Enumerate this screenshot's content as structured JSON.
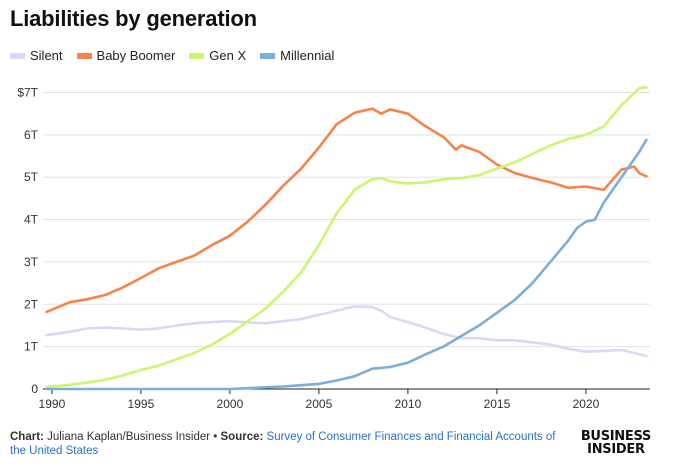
{
  "chart_data": {
    "type": "line",
    "title": "Liabilities by generation",
    "xlabel": "",
    "ylabel": "",
    "xlim": [
      1989.5,
      2023.6
    ],
    "ylim": [
      0,
      7.2
    ],
    "x_ticks": [
      1990,
      1995,
      2000,
      2005,
      2010,
      2015,
      2020
    ],
    "x_tick_labels": [
      "1990",
      "1995",
      "2000",
      "2005",
      "2010",
      "2015",
      "2020"
    ],
    "y_ticks": [
      0,
      1,
      2,
      3,
      4,
      5,
      6,
      7
    ],
    "y_tick_labels": [
      "0",
      "1T",
      "2T",
      "3T",
      "4T",
      "5T",
      "6T",
      "$7T"
    ],
    "grid": "horizontal",
    "legend": "top-left",
    "series": [
      {
        "name": "Silent",
        "color": "#d9d9f5",
        "x": [
          1989.7,
          1991,
          1992,
          1993,
          1994,
          1995,
          1996,
          1997,
          1998,
          1999,
          2000,
          2001,
          2002,
          2003,
          2004,
          2005,
          2006,
          2007,
          2008,
          2008.5,
          2009,
          2010,
          2011,
          2012,
          2013,
          2014,
          2015,
          2016,
          2017,
          2018,
          2019,
          2020,
          2021,
          2022,
          2023,
          2023.4
        ],
        "y": [
          1.27,
          1.35,
          1.43,
          1.45,
          1.43,
          1.4,
          1.43,
          1.5,
          1.55,
          1.58,
          1.6,
          1.57,
          1.55,
          1.6,
          1.65,
          1.75,
          1.85,
          1.95,
          1.93,
          1.85,
          1.7,
          1.58,
          1.45,
          1.3,
          1.2,
          1.2,
          1.15,
          1.15,
          1.1,
          1.05,
          0.95,
          0.88,
          0.9,
          0.92,
          0.82,
          0.78
        ]
      },
      {
        "name": "Baby Boomer",
        "color": "#f5844c",
        "x": [
          1989.7,
          1991,
          1992,
          1993,
          1994,
          1995,
          1996,
          1997,
          1998,
          1999,
          2000,
          2001,
          2002,
          2003,
          2004,
          2005,
          2006,
          2007,
          2008,
          2008.5,
          2009,
          2010,
          2011,
          2012,
          2012.7,
          2013,
          2014,
          2015,
          2016,
          2017,
          2018,
          2019,
          2020,
          2021,
          2022,
          2022.7,
          2023,
          2023.4
        ],
        "y": [
          1.82,
          2.05,
          2.12,
          2.22,
          2.4,
          2.62,
          2.85,
          3.0,
          3.15,
          3.4,
          3.62,
          3.95,
          4.35,
          4.8,
          5.2,
          5.7,
          6.25,
          6.52,
          6.62,
          6.5,
          6.6,
          6.5,
          6.2,
          5.95,
          5.65,
          5.75,
          5.6,
          5.3,
          5.1,
          4.98,
          4.88,
          4.75,
          4.78,
          4.7,
          5.18,
          5.25,
          5.1,
          5.02
        ]
      },
      {
        "name": "Gen X",
        "color": "#ccf570",
        "x": [
          1989.7,
          1991,
          1992,
          1993,
          1994,
          1995,
          1996,
          1997,
          1998,
          1999,
          2000,
          2001,
          2002,
          2003,
          2004,
          2005,
          2006,
          2007,
          2008,
          2008.5,
          2009,
          2010,
          2011,
          2012,
          2013,
          2014,
          2015,
          2016,
          2017,
          2018,
          2019,
          2020,
          2021,
          2022,
          2023,
          2023.4
        ],
        "y": [
          0.05,
          0.1,
          0.15,
          0.22,
          0.32,
          0.45,
          0.55,
          0.7,
          0.85,
          1.05,
          1.3,
          1.6,
          1.9,
          2.3,
          2.75,
          3.4,
          4.15,
          4.7,
          4.95,
          4.98,
          4.9,
          4.85,
          4.88,
          4.95,
          4.98,
          5.05,
          5.2,
          5.35,
          5.55,
          5.75,
          5.9,
          6.0,
          6.2,
          6.7,
          7.1,
          7.12
        ]
      },
      {
        "name": "Millennial",
        "color": "#7aaedb",
        "x": [
          1989.7,
          1995,
          2000,
          2001,
          2002,
          2003,
          2004,
          2005,
          2006,
          2007,
          2008,
          2009,
          2010,
          2011,
          2012,
          2013,
          2014,
          2015,
          2016,
          2017,
          2018,
          2019,
          2019.5,
          2020,
          2020.5,
          2021,
          2022,
          2023,
          2023.4
        ],
        "y": [
          0,
          0,
          0,
          0.02,
          0.04,
          0.06,
          0.09,
          0.12,
          0.2,
          0.3,
          0.48,
          0.52,
          0.62,
          0.82,
          1.0,
          1.25,
          1.5,
          1.8,
          2.1,
          2.5,
          3.0,
          3.5,
          3.8,
          3.95,
          4.0,
          4.4,
          5.0,
          5.6,
          5.88
        ]
      }
    ]
  },
  "footer": {
    "chart_label": "Chart:",
    "chart_author": " Juliana Kaplan/Business Insider • ",
    "source_label": "Source:",
    "source_text": " Survey of Consumer Finances and Financial Accounts of the United States"
  },
  "brand": {
    "line1": "BUSINESS",
    "line2": "INSIDER"
  }
}
